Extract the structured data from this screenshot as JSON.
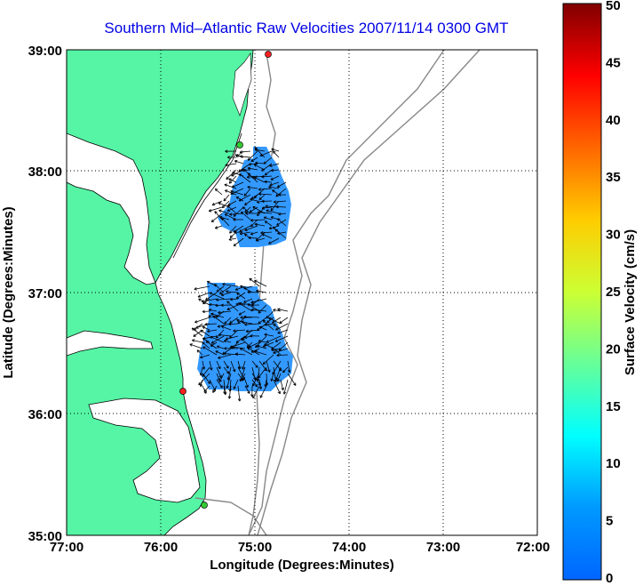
{
  "title": "Southern Mid–Atlantic Raw Velocities 2007/11/14 0300 GMT",
  "map": {
    "xlabel": "Longitude (Degrees:Minutes)",
    "ylabel": "Latitude (Degrees:Minutes)",
    "lon_ticks": [
      "77:00",
      "76:00",
      "75:00",
      "74:00",
      "73:00",
      "72:00"
    ],
    "lat_ticks": [
      "39:00",
      "38:00",
      "37:00",
      "36:00",
      "35:00"
    ],
    "lon_range": [
      -77,
      -72
    ],
    "lat_range": [
      35,
      39
    ],
    "land_color": "#55f5a5",
    "current_regions": [
      "northern-region",
      "southern-region"
    ]
  },
  "colorbar": {
    "label": "Surface Velocity (cm/s)",
    "ticks": [
      "0",
      "5",
      "10",
      "15",
      "20",
      "25",
      "30",
      "35",
      "40",
      "45",
      "50"
    ],
    "range": [
      0,
      50
    ],
    "colormap": "jet"
  },
  "stations": [
    {
      "name": "station-north",
      "color": "#ff2020"
    },
    {
      "name": "station-delmarva",
      "color": "#33cc33"
    },
    {
      "name": "station-virginia-beach",
      "color": "#ff2020"
    },
    {
      "name": "station-hatteras",
      "color": "#33cc33"
    }
  ]
}
